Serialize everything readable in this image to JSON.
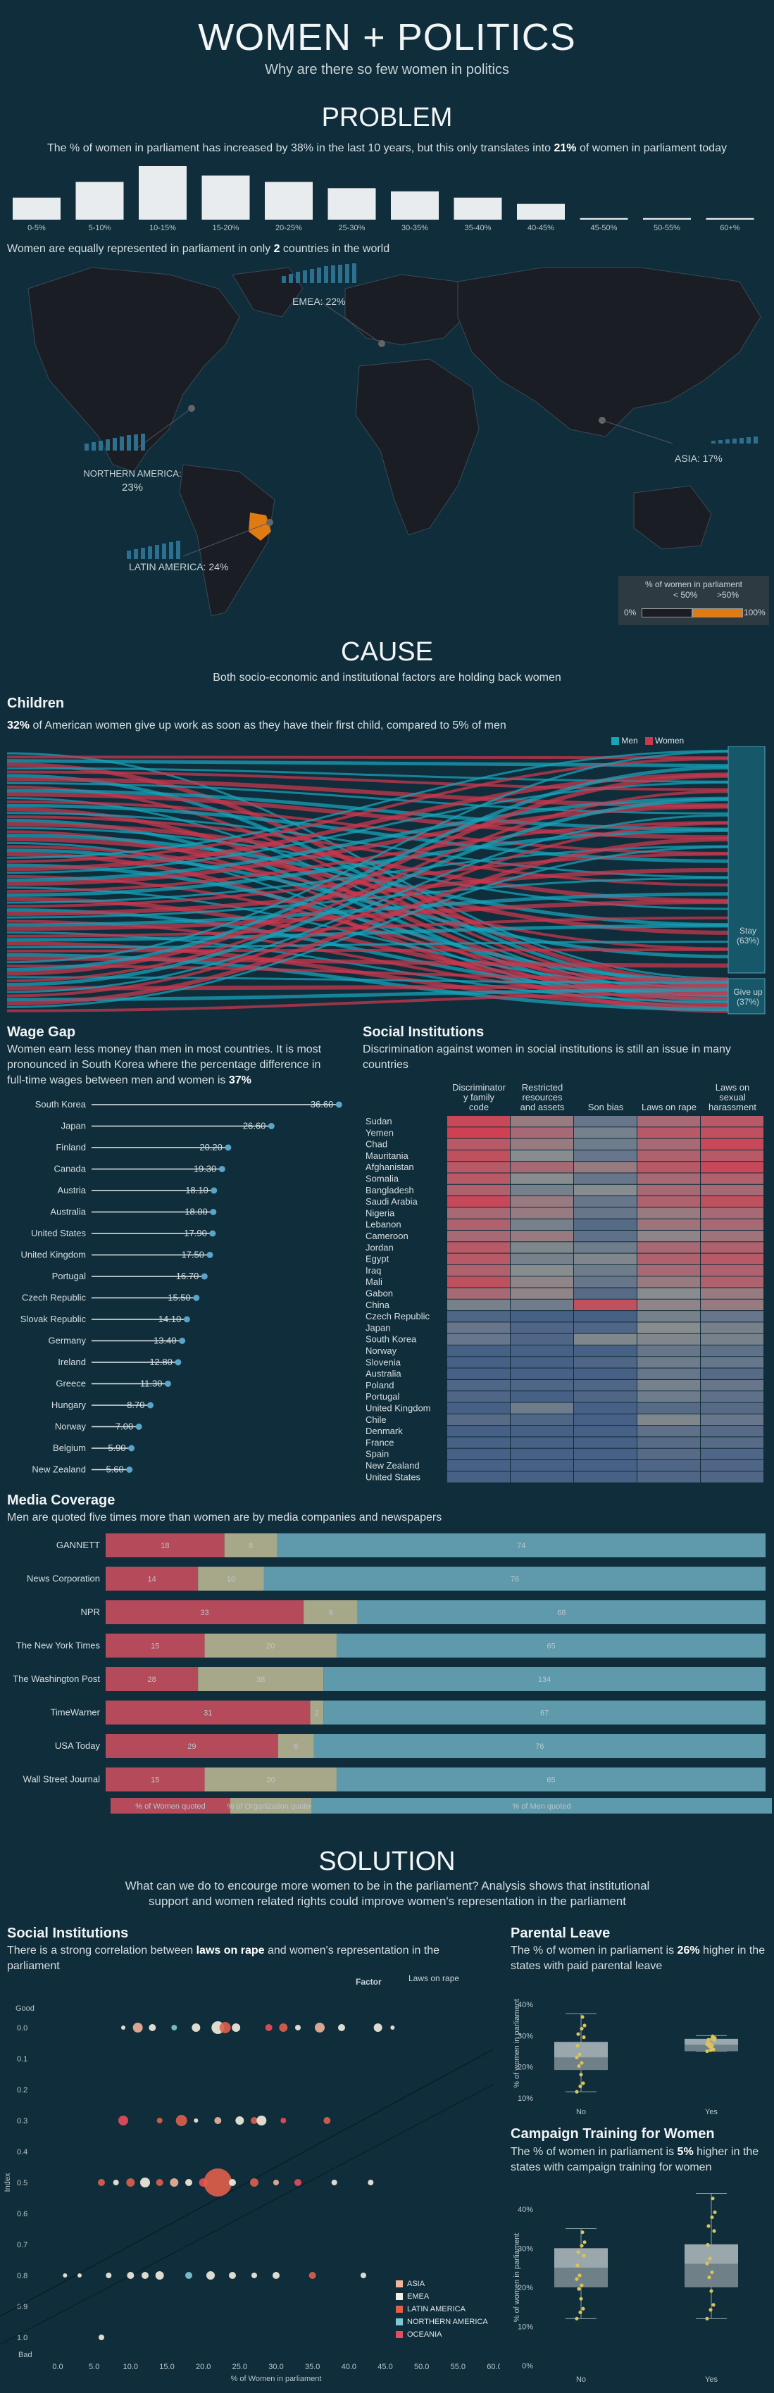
{
  "header": {
    "title": "WOMEN + POLITICS",
    "subtitle": "Why are there so few women in politics"
  },
  "problem": {
    "title": "PROBLEM",
    "text_pre": "The % of women in parliament has increased by 38% in the last 10 years, but this only translates into ",
    "text_bold": "21%",
    "text_post": " of women in parliament today",
    "map_caption_pre": "Women are equally represented in parliament in only ",
    "map_caption_bold": "2",
    "map_caption_post": " countries in the world"
  },
  "map": {
    "regions": [
      {
        "label": "EMEA: 22%"
      },
      {
        "label": "ASIA: 17%"
      },
      {
        "label": "NORTHERN AMERICA:",
        "value": "23%"
      },
      {
        "label": "LATIN AMERICA: 24%"
      }
    ],
    "legend": {
      "title": "% of women in parliament",
      "low": "< 50%",
      "high": ">50%",
      "min": "0%",
      "max": "100%"
    },
    "colors": {
      "land": "#1a1d24",
      "ocean": "#0f2d3a",
      "highlight": "#e07b12",
      "bars": "#2c6f8f"
    }
  },
  "cause": {
    "title": "CAUSE",
    "subtitle": "Both socio-economic and institutional factors are holding back women"
  },
  "children": {
    "title": "Children",
    "text_bold": "32%",
    "text_post": " of American women give up work as soon as they have their first child, compared to 5% of men",
    "legend_men": "Men",
    "legend_women": "Women",
    "stay": "Stay",
    "stay_pct": "(63%)",
    "giveup": "Give up",
    "giveup_pct": "(37%)",
    "colors": {
      "men": "#1aa2b8",
      "women": "#c8384f"
    }
  },
  "wage": {
    "title": "Wage Gap",
    "text_pre": "Women earn less money than men in most countries.  It is most pronounced in South Korea where the percentage difference in full-time wages between men and women is ",
    "text_bold": "37%"
  },
  "social": {
    "title": "Social Institutions",
    "text": "Discrimination against women in social institutions is still an issue in many countries",
    "columns": [
      "Discriminator y family code",
      "Restricted resources and assets",
      "Son bias",
      "Laws on rape",
      "Laws on sexual harassment"
    ]
  },
  "media": {
    "title": "Media Coverage",
    "text": "Men are quoted five times more than women are by media companies and newspapers",
    "legend": [
      "% of Women quoted",
      "% of Organization quoted",
      "% of Men quoted"
    ],
    "colors": {
      "women": "#b44a5a",
      "org": "#a7a88a",
      "men": "#5e9aab"
    }
  },
  "solution": {
    "title": "SOLUTION",
    "text": "What can we do to encourge more women to be in the parliament? Analysis shows that institutional support and women related rights could improve women's representation in the parliament"
  },
  "social2": {
    "title": "Social Institutions",
    "text_pre": "There is a strong correlation between ",
    "text_bold": "laws on rape",
    "text_post": " and women's representation in the parliament",
    "factor_label": "Factor",
    "factor_value": "Laws on rape",
    "good": "Good",
    "bad": "Bad",
    "legend": [
      "ASIA",
      "EMEA",
      "LATIN AMERICA",
      "NORTHERN AMERICA",
      "OCEANIA"
    ],
    "legend_colors": [
      "#f2b49b",
      "#f5f0e1",
      "#e0604a",
      "#7fc9d3",
      "#e84c5c"
    ]
  },
  "parental": {
    "title": "Parental Leave",
    "text_pre": "The % of women in parliament is ",
    "text_bold": "26%",
    "text_post": " higher in the states with paid parental leave"
  },
  "campaign": {
    "title": "Campaign Training for Women",
    "text_pre": "The % of women in parliament is ",
    "text_bold": "5%",
    "text_post": " higher in the states with campaign training for women"
  },
  "chart_data": [
    {
      "type": "bar",
      "categories": [
        "0-5%",
        "5-10%",
        "10-15%",
        "15-20%",
        "20-25%",
        "25-30%",
        "30-35%",
        "35-40%",
        "40-45%",
        "45-50%",
        "50-55%",
        "60+%"
      ],
      "values": [
        14,
        24,
        34,
        28,
        24,
        20,
        18,
        14,
        10,
        1,
        1,
        1
      ]
    },
    {
      "type": "bar",
      "orientation": "horizontal",
      "categories": [
        "South Korea",
        "Japan",
        "Finland",
        "Canada",
        "Austria",
        "Australia",
        "United States",
        "United Kingdom",
        "Portugal",
        "Czech Republic",
        "Slovak Republic",
        "Germany",
        "Ireland",
        "Greece",
        "Hungary",
        "Norway",
        "Belgium",
        "New Zealand"
      ],
      "values": [
        36.6,
        26.6,
        20.2,
        19.3,
        18.1,
        18.0,
        17.9,
        17.5,
        16.7,
        15.5,
        14.1,
        13.4,
        12.8,
        11.3,
        8.7,
        7.0,
        5.9,
        5.6
      ],
      "value_labels": [
        "36.60",
        "26.60",
        "20.20",
        "19.30",
        "18.10",
        "18.00",
        "17.90",
        "17.50",
        "16.70",
        "15.50",
        "14.10",
        "13.40",
        "12.80",
        "11.30",
        "8.70",
        "7.00",
        "5.90",
        "5.60"
      ]
    },
    {
      "type": "heatmap",
      "rows": [
        "Sudan",
        "Yemen",
        "Chad",
        "Mauritania",
        "Afghanistan",
        "Somalia",
        "Bangladesh",
        "Saudi Arabia",
        "Nigeria",
        "Lebanon",
        "Cameroon",
        "Jordan",
        "Egypt",
        "Iraq",
        "Mali",
        "Gabon",
        "China",
        "Czech Republic",
        "Japan",
        "South Korea",
        "Norway",
        "Slovenia",
        "Australia",
        "Poland",
        "Portugal",
        "United Kingdom",
        "Chile",
        "Denmark",
        "France",
        "Spain",
        "New Zealand",
        "United States"
      ],
      "columns": [
        "Discriminator y family code",
        "Restricted resources and assets",
        "Son bias",
        "Laws on rape",
        "Laws on sexual harassment"
      ],
      "values": [
        [
          0.9,
          0.6,
          0.3,
          0.7,
          0.8
        ],
        [
          0.95,
          0.7,
          0.4,
          0.8,
          0.85
        ],
        [
          0.8,
          0.6,
          0.35,
          0.7,
          0.9
        ],
        [
          0.85,
          0.5,
          0.3,
          0.75,
          0.8
        ],
        [
          0.8,
          0.7,
          0.6,
          0.8,
          0.9
        ],
        [
          0.8,
          0.5,
          0.3,
          0.7,
          0.75
        ],
        [
          0.75,
          0.4,
          0.5,
          0.7,
          0.7
        ],
        [
          0.9,
          0.6,
          0.3,
          0.75,
          0.85
        ],
        [
          0.7,
          0.6,
          0.3,
          0.6,
          0.7
        ],
        [
          0.75,
          0.4,
          0.2,
          0.65,
          0.7
        ],
        [
          0.7,
          0.6,
          0.25,
          0.55,
          0.65
        ],
        [
          0.8,
          0.45,
          0.35,
          0.7,
          0.75
        ],
        [
          0.8,
          0.4,
          0.45,
          0.75,
          0.8
        ],
        [
          0.75,
          0.5,
          0.35,
          0.7,
          0.75
        ],
        [
          0.85,
          0.55,
          0.3,
          0.6,
          0.75
        ],
        [
          0.7,
          0.55,
          0.2,
          0.5,
          0.6
        ],
        [
          0.4,
          0.35,
          0.85,
          0.55,
          0.6
        ],
        [
          0.15,
          0.1,
          0.1,
          0.4,
          0.3
        ],
        [
          0.3,
          0.15,
          0.15,
          0.5,
          0.4
        ],
        [
          0.3,
          0.15,
          0.45,
          0.45,
          0.4
        ],
        [
          0.1,
          0.1,
          0.1,
          0.3,
          0.25
        ],
        [
          0.1,
          0.1,
          0.15,
          0.35,
          0.3
        ],
        [
          0.1,
          0.1,
          0.1,
          0.3,
          0.2
        ],
        [
          0.15,
          0.15,
          0.15,
          0.4,
          0.3
        ],
        [
          0.15,
          0.1,
          0.15,
          0.35,
          0.25
        ],
        [
          0.1,
          0.35,
          0.1,
          0.2,
          0.2
        ],
        [
          0.2,
          0.15,
          0.1,
          0.45,
          0.3
        ],
        [
          0.1,
          0.1,
          0.1,
          0.25,
          0.2
        ],
        [
          0.1,
          0.1,
          0.1,
          0.2,
          0.2
        ],
        [
          0.1,
          0.1,
          0.1,
          0.2,
          0.15
        ],
        [
          0.1,
          0.1,
          0.1,
          0.15,
          0.15
        ],
        [
          0.1,
          0.1,
          0.1,
          0.15,
          0.15
        ]
      ]
    },
    {
      "type": "bar",
      "orientation": "horizontal",
      "stacked": true,
      "categories": [
        "GANNETT",
        "News Corporation",
        "NPR",
        "The New York Times",
        "The Washington Post",
        "TimeWarner",
        "USA Today",
        "Wall Street Journal"
      ],
      "series": [
        {
          "name": "% of Women quoted",
          "values": [
            18,
            14,
            33,
            15,
            28,
            31,
            29,
            15
          ]
        },
        {
          "name": "% of Organization quoted",
          "values": [
            8,
            10,
            9,
            20,
            38,
            2,
            6,
            20
          ]
        },
        {
          "name": "% of Men quoted",
          "values": [
            74,
            76,
            68,
            65,
            134,
            67,
            76,
            65
          ]
        }
      ]
    },
    {
      "type": "scatter",
      "xlabel": "% of Women in parliament",
      "ylabel": "Index",
      "xlim": [
        0,
        60
      ],
      "ylim": [
        0,
        1
      ],
      "x_ticks": [
        "0.0",
        "5.0",
        "10.0",
        "15.0",
        "20.0",
        "25.0",
        "30.0",
        "35.0",
        "40.0",
        "45.0",
        "50.0",
        "55.0",
        "60.0"
      ],
      "y_ticks": [
        "0.0",
        "0.1",
        "0.2",
        "0.3",
        "0.4",
        "0.5",
        "0.6",
        "0.7",
        "0.8",
        "0.9",
        "1.0"
      ],
      "points": [
        {
          "x": 9,
          "y": 0,
          "r": 3,
          "c": 1
        },
        {
          "x": 11,
          "y": 0,
          "r": 7,
          "c": 0
        },
        {
          "x": 13,
          "y": 0,
          "r": 5,
          "c": 1
        },
        {
          "x": 16,
          "y": 0,
          "r": 4,
          "c": 3
        },
        {
          "x": 19,
          "y": 0,
          "r": 6,
          "c": 1
        },
        {
          "x": 22,
          "y": 0,
          "r": 9,
          "c": 1
        },
        {
          "x": 23,
          "y": 0,
          "r": 8,
          "c": 2
        },
        {
          "x": 24.5,
          "y": 0,
          "r": 6,
          "c": 1
        },
        {
          "x": 29,
          "y": 0,
          "r": 5,
          "c": 4
        },
        {
          "x": 31,
          "y": 0,
          "r": 6,
          "c": 2
        },
        {
          "x": 33,
          "y": 0,
          "r": 4,
          "c": 1
        },
        {
          "x": 36,
          "y": 0,
          "r": 7,
          "c": 0
        },
        {
          "x": 39,
          "y": 0,
          "r": 5,
          "c": 1
        },
        {
          "x": 44,
          "y": 0,
          "r": 6,
          "c": 1
        },
        {
          "x": 46,
          "y": 0,
          "r": 3,
          "c": 1
        },
        {
          "x": 9,
          "y": 0.3,
          "r": 7,
          "c": 4
        },
        {
          "x": 14,
          "y": 0.3,
          "r": 4,
          "c": 2
        },
        {
          "x": 17,
          "y": 0.3,
          "r": 8,
          "c": 2
        },
        {
          "x": 19,
          "y": 0.3,
          "r": 3,
          "c": 1
        },
        {
          "x": 22,
          "y": 0.3,
          "r": 5,
          "c": 0
        },
        {
          "x": 25,
          "y": 0.3,
          "r": 6,
          "c": 1
        },
        {
          "x": 27,
          "y": 0.3,
          "r": 5,
          "c": 2
        },
        {
          "x": 28,
          "y": 0.3,
          "r": 7,
          "c": 1
        },
        {
          "x": 31,
          "y": 0.3,
          "r": 4,
          "c": 4
        },
        {
          "x": 37,
          "y": 0.3,
          "r": 5,
          "c": 2
        },
        {
          "x": 6,
          "y": 0.5,
          "r": 5,
          "c": 2
        },
        {
          "x": 8,
          "y": 0.5,
          "r": 4,
          "c": 1
        },
        {
          "x": 10,
          "y": 0.5,
          "r": 6,
          "c": 2
        },
        {
          "x": 12,
          "y": 0.5,
          "r": 7,
          "c": 1
        },
        {
          "x": 14,
          "y": 0.5,
          "r": 5,
          "c": 2
        },
        {
          "x": 16,
          "y": 0.5,
          "r": 6,
          "c": 0
        },
        {
          "x": 18,
          "y": 0.5,
          "r": 5,
          "c": 1
        },
        {
          "x": 20,
          "y": 0.5,
          "r": 6,
          "c": 4
        },
        {
          "x": 22,
          "y": 0.5,
          "r": 20,
          "c": 2
        },
        {
          "x": 24,
          "y": 0.5,
          "r": 5,
          "c": 1
        },
        {
          "x": 27,
          "y": 0.5,
          "r": 6,
          "c": 2
        },
        {
          "x": 30,
          "y": 0.5,
          "r": 4,
          "c": 0
        },
        {
          "x": 33,
          "y": 0.5,
          "r": 5,
          "c": 4
        },
        {
          "x": 38,
          "y": 0.5,
          "r": 4,
          "c": 1
        },
        {
          "x": 43,
          "y": 0.5,
          "r": 4,
          "c": 1
        },
        {
          "x": 1,
          "y": 0.8,
          "r": 3,
          "c": 1
        },
        {
          "x": 3,
          "y": 0.8,
          "r": 3,
          "c": 1
        },
        {
          "x": 7,
          "y": 0.8,
          "r": 4,
          "c": 1
        },
        {
          "x": 10,
          "y": 0.8,
          "r": 5,
          "c": 1
        },
        {
          "x": 12,
          "y": 0.8,
          "r": 5,
          "c": 1
        },
        {
          "x": 14,
          "y": 0.8,
          "r": 6,
          "c": 1
        },
        {
          "x": 18,
          "y": 0.8,
          "r": 5,
          "c": 3
        },
        {
          "x": 21,
          "y": 0.8,
          "r": 6,
          "c": 1
        },
        {
          "x": 24,
          "y": 0.8,
          "r": 5,
          "c": 1
        },
        {
          "x": 27,
          "y": 0.8,
          "r": 4,
          "c": 1
        },
        {
          "x": 30,
          "y": 0.8,
          "r": 5,
          "c": 1
        },
        {
          "x": 35,
          "y": 0.8,
          "r": 5,
          "c": 2
        },
        {
          "x": 42,
          "y": 0.8,
          "r": 4,
          "c": 1
        },
        {
          "x": 6,
          "y": 1.0,
          "r": 4,
          "c": 1
        }
      ]
    },
    {
      "type": "box",
      "ylabel": "% of women in parliament",
      "categories": [
        "No",
        "Yes"
      ],
      "y_ticks": [
        "40%",
        "30%",
        "20%",
        "10%"
      ],
      "ylim": [
        10,
        45
      ],
      "boxes": [
        {
          "min": 12,
          "q1": 19,
          "median": 23,
          "q3": 28,
          "max": 37
        },
        {
          "min": 25,
          "q1": 25,
          "median": 27,
          "q3": 29,
          "max": 30
        }
      ]
    },
    {
      "type": "box",
      "ylabel": "% of women in parliament",
      "categories": [
        "No",
        "Yes"
      ],
      "y_ticks": [
        "40%",
        "30%",
        "20%",
        "10%",
        "0%"
      ],
      "ylim": [
        0,
        45
      ],
      "boxes": [
        {
          "min": 12,
          "q1": 20,
          "median": 25,
          "q3": 30,
          "max": 35
        },
        {
          "min": 12,
          "q1": 20,
          "median": 26,
          "q3": 31,
          "max": 44
        }
      ]
    }
  ]
}
